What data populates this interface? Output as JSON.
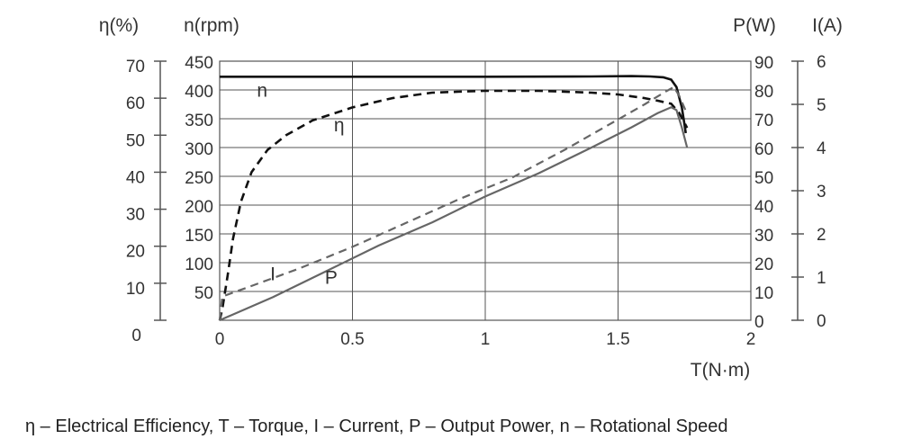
{
  "caption": "η – Electrical Efficiency, T – Torque, I – Current, P – Output Power, n – Rotational Speed",
  "chart_data": {
    "type": "line",
    "xlabel": "T(N·m)",
    "xlim": [
      0,
      2
    ],
    "x_ticks": [
      "0",
      "0.5",
      "1",
      "1.5",
      "2"
    ],
    "grid": true,
    "axes": {
      "eta": {
        "title": "η(%)",
        "range": [
          0,
          70
        ],
        "ticks": [
          "0",
          "10",
          "20",
          "30",
          "40",
          "50",
          "60",
          "70"
        ]
      },
      "n": {
        "title": "n(rpm)",
        "range": [
          0,
          450
        ],
        "ticks": [
          "50",
          "100",
          "150",
          "200",
          "250",
          "300",
          "350",
          "400",
          "450"
        ]
      },
      "P": {
        "title": "P(W)",
        "range": [
          0,
          90
        ],
        "ticks": [
          "0",
          "10",
          "20",
          "30",
          "40",
          "50",
          "60",
          "70",
          "80",
          "90"
        ]
      },
      "I": {
        "title": "I(A)",
        "range": [
          0,
          6
        ],
        "ticks": [
          "0",
          "1",
          "2",
          "3",
          "4",
          "5",
          "6"
        ]
      }
    },
    "series": [
      {
        "name": "n",
        "axis": "n",
        "style": "solid-black",
        "color": "#111111",
        "x": [
          0,
          0.2,
          0.5,
          1.0,
          1.4,
          1.55,
          1.62,
          1.67,
          1.7,
          1.72,
          1.74,
          1.75,
          1.755
        ],
        "y": [
          423,
          423,
          423,
          423,
          423.5,
          424,
          423.5,
          422,
          418,
          405,
          370,
          340,
          325
        ]
      },
      {
        "name": "η",
        "axis": "eta",
        "style": "dashed-black",
        "color": "#111111",
        "x": [
          0,
          0.01,
          0.03,
          0.05,
          0.08,
          0.12,
          0.18,
          0.25,
          0.35,
          0.5,
          0.65,
          0.8,
          1.0,
          1.2,
          1.4,
          1.5,
          1.6,
          1.65,
          1.7,
          1.73,
          1.76
        ],
        "y": [
          0,
          3,
          12,
          22,
          32,
          40,
          46,
          50,
          54,
          57.5,
          60,
          61.5,
          62,
          62,
          61.5,
          61,
          60,
          59.3,
          58.5,
          56,
          52
        ]
      },
      {
        "name": "I",
        "axis": "I",
        "style": "dashed-gray",
        "color": "#666666",
        "x": [
          0,
          0.01,
          0.1,
          0.3,
          0.5,
          0.7,
          0.9,
          1.1,
          1.3,
          1.5,
          1.6,
          1.68,
          1.71,
          1.73,
          1.755
        ],
        "y": [
          0,
          0.55,
          0.75,
          1.2,
          1.7,
          2.25,
          2.8,
          3.3,
          3.95,
          4.65,
          5.0,
          5.3,
          5.4,
          5.2,
          4.85
        ]
      },
      {
        "name": "P",
        "axis": "P",
        "style": "solid-gray",
        "color": "#666666",
        "x": [
          0,
          0.2,
          0.4,
          0.6,
          0.8,
          1.0,
          1.2,
          1.4,
          1.55,
          1.65,
          1.7,
          1.72,
          1.74,
          1.76
        ],
        "y": [
          0,
          8,
          17,
          26,
          34,
          43,
          51,
          60,
          67,
          72,
          74,
          73,
          67,
          60
        ]
      }
    ],
    "curve_labels": [
      "n",
      "η",
      "I",
      "P"
    ]
  }
}
